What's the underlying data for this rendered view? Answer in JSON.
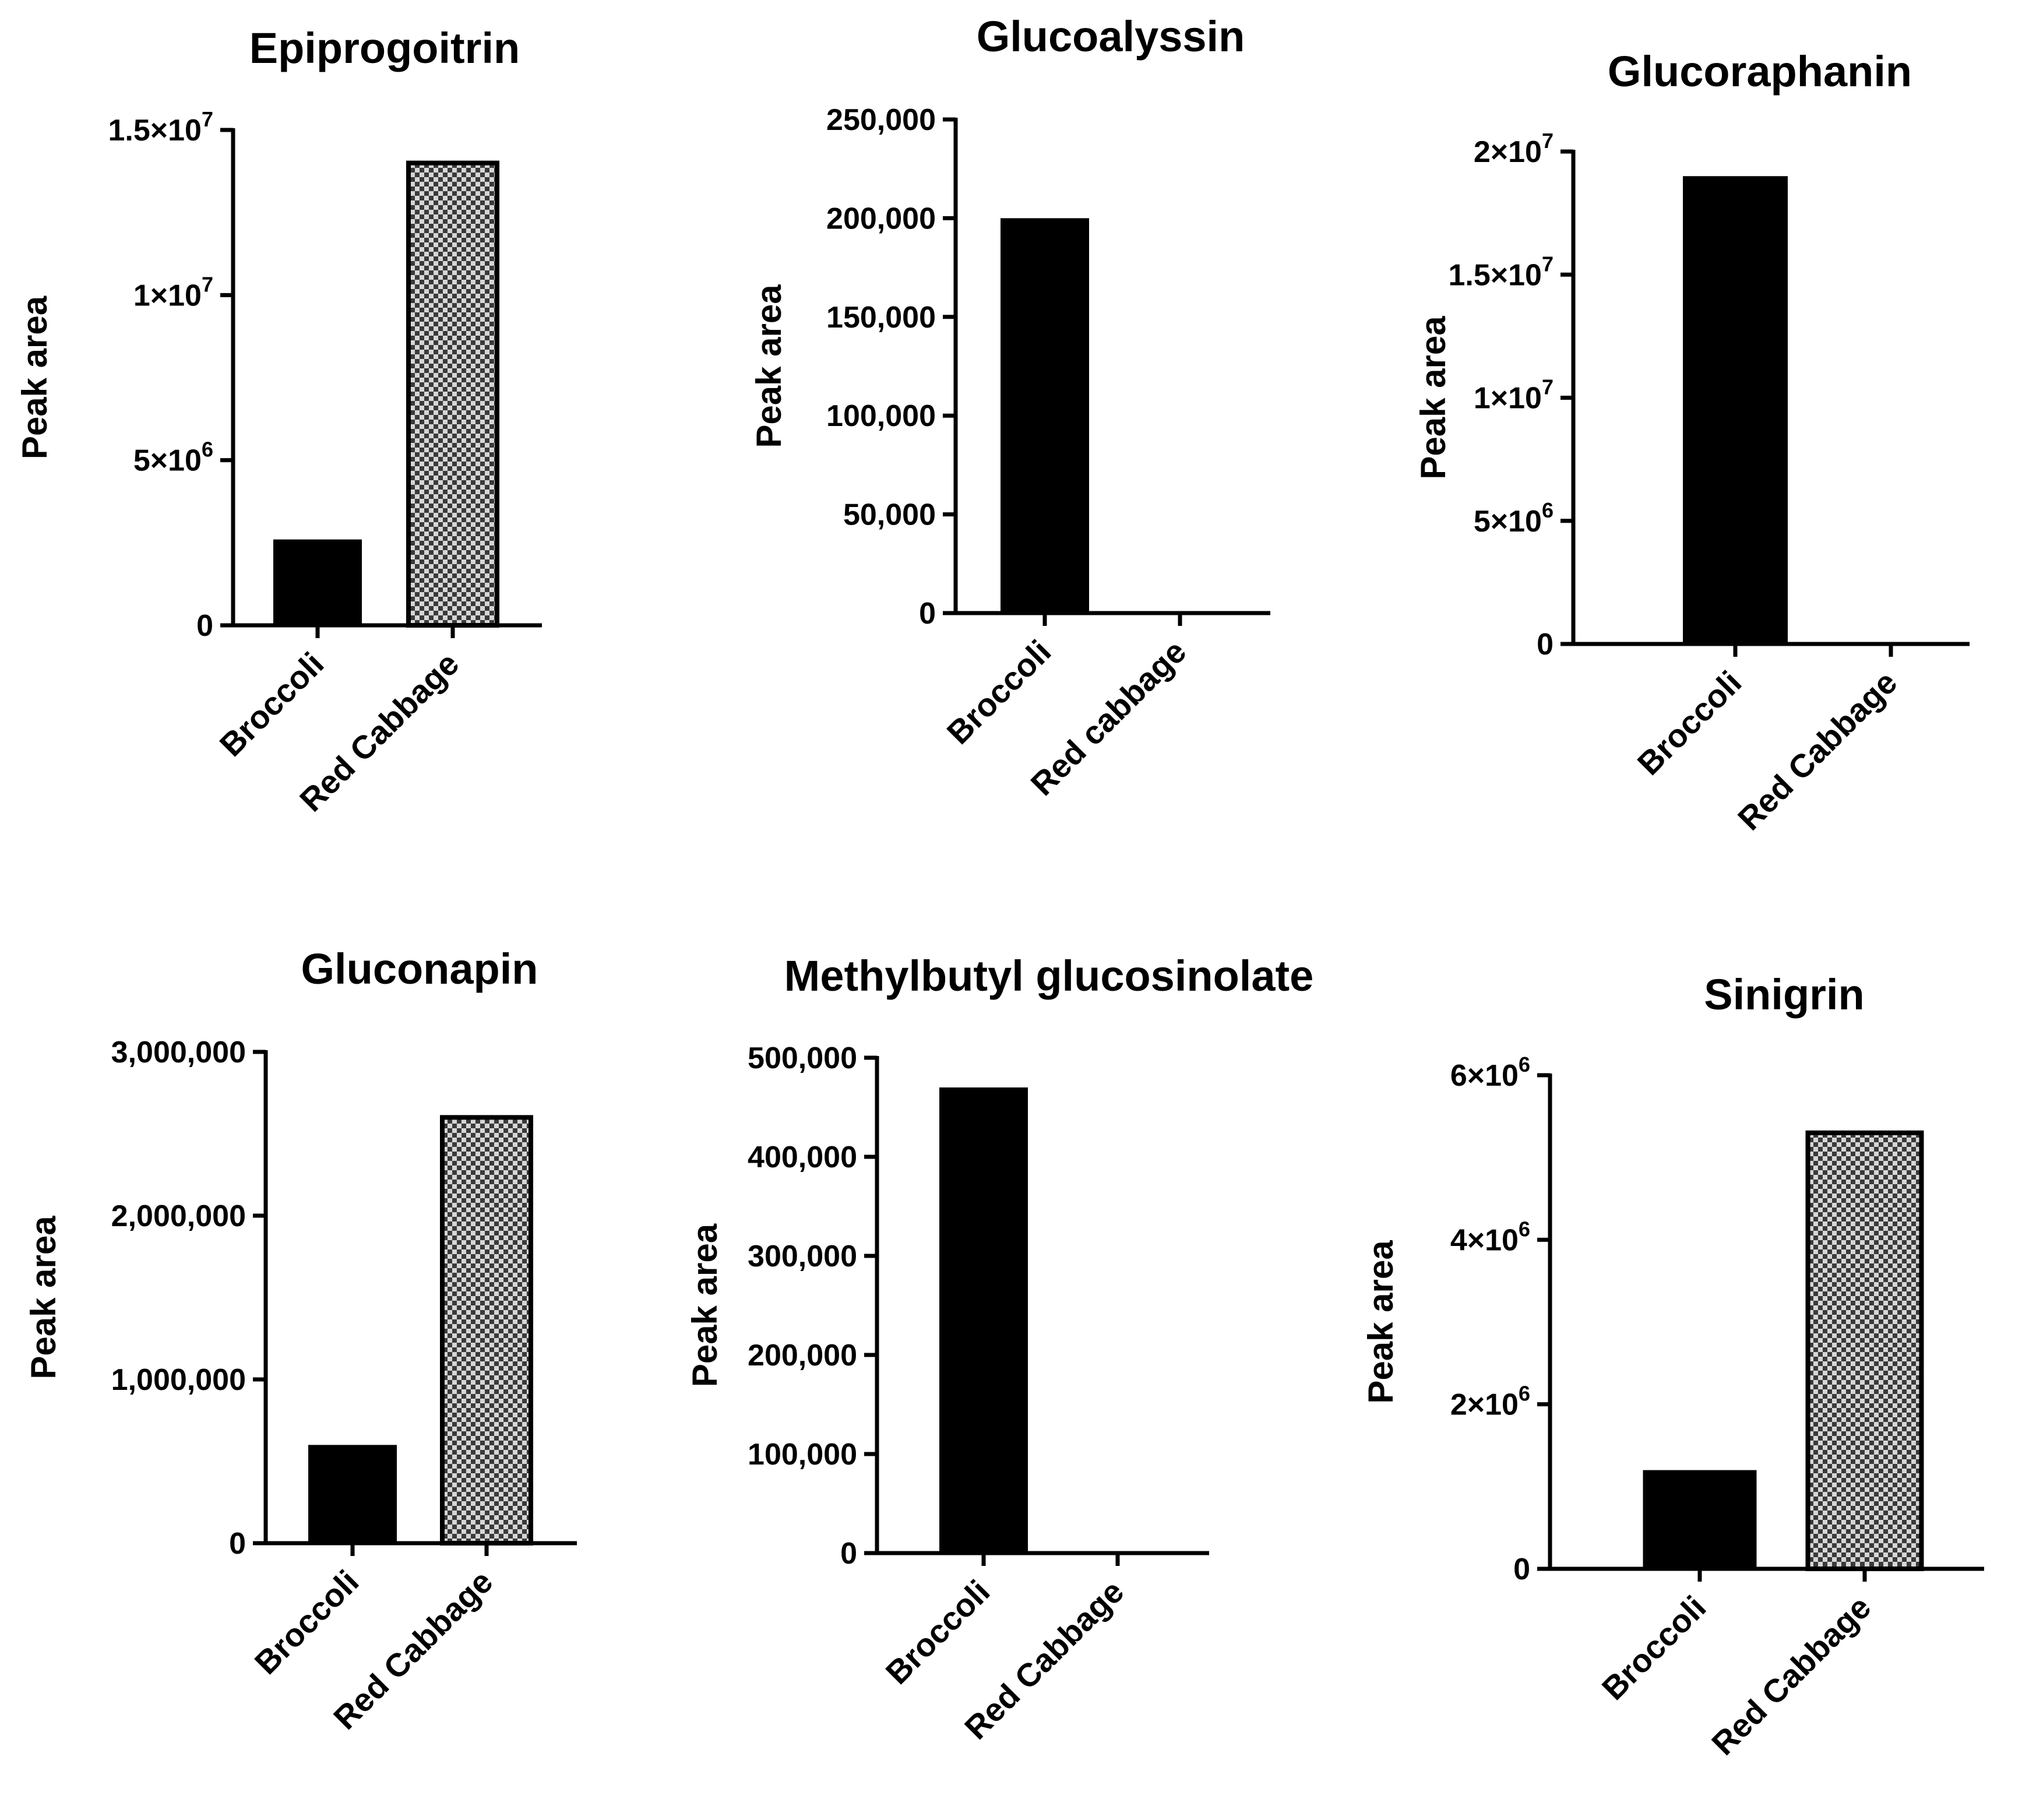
{
  "chart_data": [
    {
      "type": "bar",
      "title": "Epiprogoitrin",
      "ylabel": "Peak area",
      "xlabel": "",
      "categories": [
        "Broccoli",
        "Red Cabbage"
      ],
      "values": [
        2600000,
        14000000
      ],
      "ylim": [
        0,
        15000000
      ],
      "yticks": [
        0,
        5000000,
        10000000,
        15000000
      ],
      "ytick_labels": [
        {
          "mant": "0",
          "exp": ""
        },
        {
          "mant": "5×10",
          "exp": "6"
        },
        {
          "mant": "1×10",
          "exp": "7"
        },
        {
          "mant": "1.5×10",
          "exp": "7"
        }
      ],
      "fills": [
        "solid",
        "checker"
      ]
    },
    {
      "type": "bar",
      "title": "Glucoalyssin",
      "ylabel": "Peak area",
      "xlabel": "",
      "categories": [
        "Broccoli",
        "Red cabbage"
      ],
      "values": [
        200000,
        0
      ],
      "ylim": [
        0,
        250000
      ],
      "yticks": [
        0,
        50000,
        100000,
        150000,
        200000,
        250000
      ],
      "ytick_labels": [
        {
          "mant": "0",
          "exp": ""
        },
        {
          "mant": "50,000",
          "exp": ""
        },
        {
          "mant": "100,000",
          "exp": ""
        },
        {
          "mant": "150,000",
          "exp": ""
        },
        {
          "mant": "200,000",
          "exp": ""
        },
        {
          "mant": "250,000",
          "exp": ""
        }
      ],
      "fills": [
        "solid",
        "solid"
      ]
    },
    {
      "type": "bar",
      "title": "Glucoraphanin",
      "ylabel": "Peak area",
      "xlabel": "",
      "categories": [
        "Broccoli",
        "Red Cabbage"
      ],
      "values": [
        19000000,
        0
      ],
      "ylim": [
        0,
        20000000
      ],
      "yticks": [
        0,
        5000000,
        10000000,
        15000000,
        20000000
      ],
      "ytick_labels": [
        {
          "mant": "0",
          "exp": ""
        },
        {
          "mant": "5×10",
          "exp": "6"
        },
        {
          "mant": "1×10",
          "exp": "7"
        },
        {
          "mant": "1.5×10",
          "exp": "7"
        },
        {
          "mant": "2×10",
          "exp": "7"
        }
      ],
      "fills": [
        "solid",
        "solid"
      ]
    },
    {
      "type": "bar",
      "title": "Gluconapin",
      "ylabel": "Peak area",
      "xlabel": "",
      "categories": [
        "Broccoli",
        "Red Cabbage"
      ],
      "values": [
        600000,
        2600000
      ],
      "ylim": [
        0,
        3000000
      ],
      "yticks": [
        0,
        1000000,
        2000000,
        3000000
      ],
      "ytick_labels": [
        {
          "mant": "0",
          "exp": ""
        },
        {
          "mant": "1,000,000",
          "exp": ""
        },
        {
          "mant": "2,000,000",
          "exp": ""
        },
        {
          "mant": "3,000,000",
          "exp": ""
        }
      ],
      "fills": [
        "solid",
        "checker"
      ]
    },
    {
      "type": "bar",
      "title": "Methylbutyl glucosinolate",
      "ylabel": "Peak area",
      "xlabel": "",
      "categories": [
        "Broccoli",
        "Red Cabbage"
      ],
      "values": [
        470000,
        0
      ],
      "ylim": [
        0,
        500000
      ],
      "yticks": [
        0,
        100000,
        200000,
        300000,
        400000,
        500000
      ],
      "ytick_labels": [
        {
          "mant": "0",
          "exp": ""
        },
        {
          "mant": "100,000",
          "exp": ""
        },
        {
          "mant": "200,000",
          "exp": ""
        },
        {
          "mant": "300,000",
          "exp": ""
        },
        {
          "mant": "400,000",
          "exp": ""
        },
        {
          "mant": "500,000",
          "exp": ""
        }
      ],
      "fills": [
        "solid",
        "solid"
      ]
    },
    {
      "type": "bar",
      "title": "Sinigrin",
      "ylabel": "Peak area",
      "xlabel": "",
      "categories": [
        "Broccoli",
        "Red Cabbage"
      ],
      "values": [
        1200000,
        5300000
      ],
      "ylim": [
        0,
        6000000
      ],
      "yticks": [
        0,
        2000000,
        4000000,
        6000000
      ],
      "ytick_labels": [
        {
          "mant": "0",
          "exp": ""
        },
        {
          "mant": "2×10",
          "exp": "6"
        },
        {
          "mant": "4×10",
          "exp": "6"
        },
        {
          "mant": "6×10",
          "exp": "6"
        }
      ],
      "fills": [
        "solid",
        "checker"
      ]
    }
  ]
}
